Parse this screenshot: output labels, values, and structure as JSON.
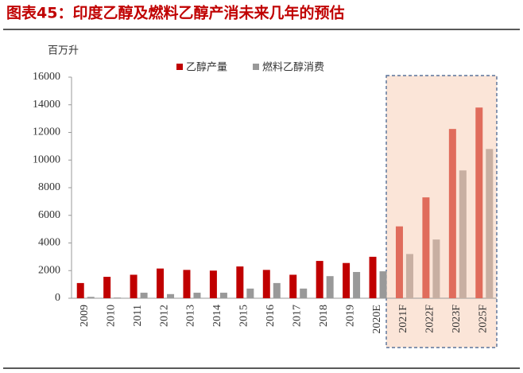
{
  "chart_data": {
    "type": "bar",
    "title": "图表45：印度乙醇及燃料乙醇产消未来几年的预估",
    "y_label": "百万升",
    "categories": [
      "2009",
      "2010",
      "2011",
      "2012",
      "2013",
      "2014",
      "2015",
      "2016",
      "2017",
      "2018",
      "2019",
      "2020E",
      "2021F",
      "2022F",
      "2023F",
      "2025F"
    ],
    "series": [
      {
        "name": "乙醇产量",
        "color": "#c00000",
        "colors": [
          "#c00000",
          "#c00000",
          "#c00000",
          "#c00000",
          "#c00000",
          "#c00000",
          "#c00000",
          "#c00000",
          "#c00000",
          "#c00000",
          "#c00000",
          "#c00000",
          "#e06c5c",
          "#e06c5c",
          "#e06c5c",
          "#e06c5c"
        ],
        "values": [
          1100,
          1550,
          1700,
          2150,
          2050,
          2000,
          2300,
          2050,
          1700,
          2700,
          2550,
          3000,
          5200,
          7300,
          12250,
          13800
        ]
      },
      {
        "name": "燃料乙醇消费",
        "color": "#999999",
        "colors": [
          "#999999",
          "#999999",
          "#999999",
          "#999999",
          "#999999",
          "#999999",
          "#999999",
          "#999999",
          "#999999",
          "#999999",
          "#999999",
          "#999999",
          "#c8afa2",
          "#c8afa2",
          "#c8afa2",
          "#c8afa2"
        ],
        "values": [
          100,
          50,
          400,
          300,
          400,
          400,
          700,
          1100,
          700,
          1600,
          1900,
          1950,
          3200,
          4250,
          9250,
          10800
        ]
      }
    ],
    "ylim": [
      0,
      16000
    ],
    "yticks": [
      0,
      2000,
      4000,
      6000,
      8000,
      10000,
      12000,
      14000,
      16000
    ],
    "grid": false
  }
}
